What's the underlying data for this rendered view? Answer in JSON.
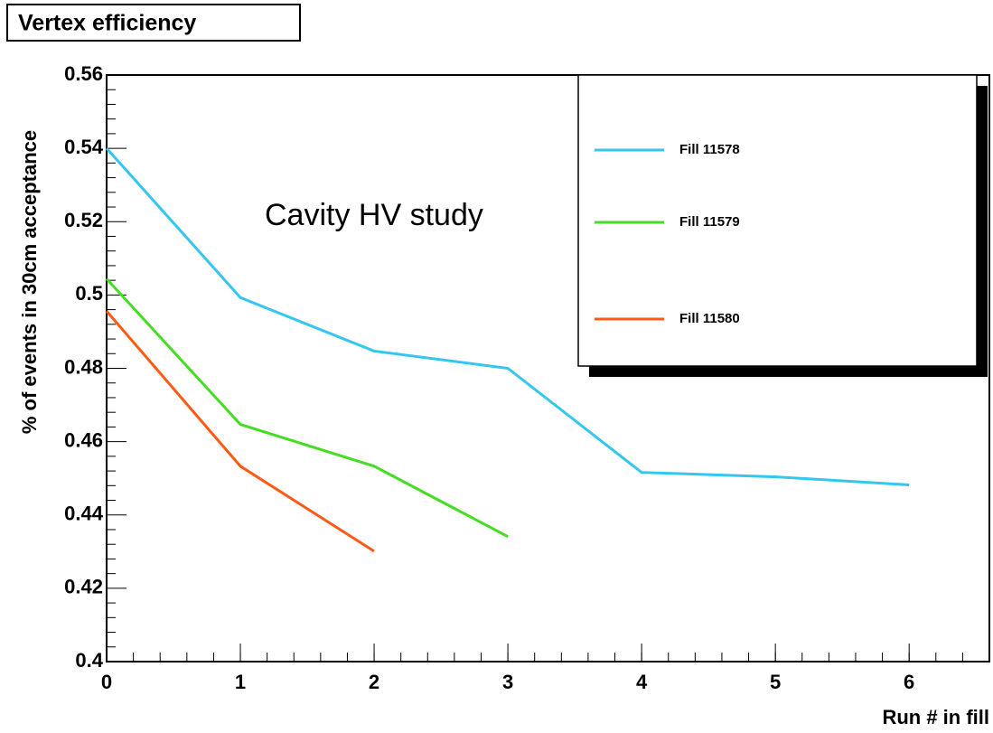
{
  "chart_data": {
    "type": "line",
    "title": "Vertex efficiency",
    "annotation": "Cavity HV study",
    "x_label": "Run # in fill",
    "y_label": "% of events in 30cm acceptance",
    "series": [
      {
        "name": "Fill 11578",
        "color": "#33c6ee",
        "x": [
          0,
          1,
          2,
          3,
          4,
          5,
          6
        ],
        "values": [
          0.54,
          0.4993,
          0.4847,
          0.48,
          0.4516,
          0.4504,
          0.4482
        ]
      },
      {
        "name": "Fill 11579",
        "color": "#44dd22",
        "x": [
          0,
          1,
          2,
          3
        ],
        "values": [
          0.5044,
          0.4647,
          0.4533,
          0.4341
        ]
      },
      {
        "name": "Fill 11580",
        "color": "#ff5a14",
        "x": [
          0,
          1,
          2
        ],
        "values": [
          0.4956,
          0.4533,
          0.4301
        ]
      }
    ],
    "xlim": [
      0,
      6.6
    ],
    "xticks": [
      0,
      1,
      2,
      3,
      4,
      5,
      6
    ],
    "ylim": [
      0.4,
      0.56
    ],
    "yticks": [
      0.4,
      0.42,
      0.44,
      0.46,
      0.48,
      0.5,
      0.52,
      0.54,
      0.56
    ],
    "legend": "upper right"
  }
}
